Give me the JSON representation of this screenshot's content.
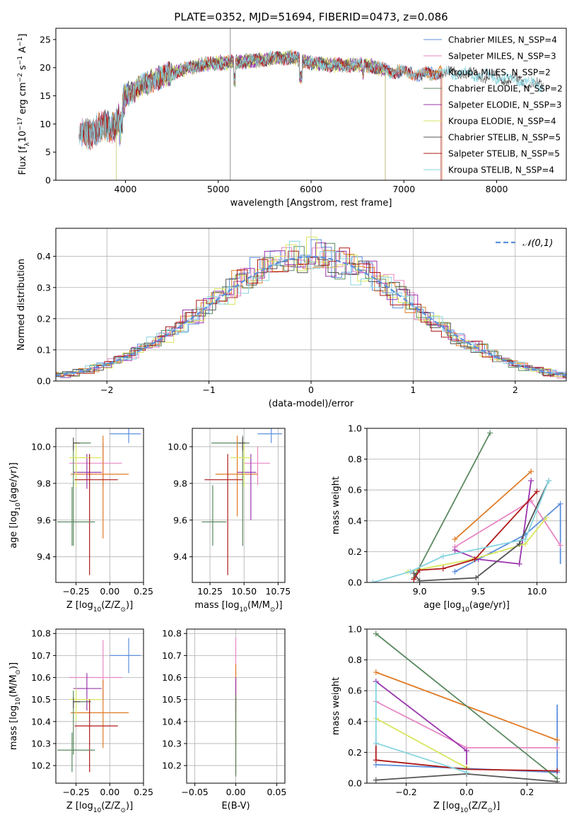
{
  "figure_title": "PLATE=0352, MJD=51694, FIBERID=0473, z=0.086",
  "colors": {
    "Chabrier MILES": "#5b8fde",
    "Salpeter MILES": "#e887c4",
    "Kroupa MILES": "#e07b25",
    "Chabrier ELODIE": "#5a8a60",
    "Salpeter ELODIE": "#9a36ad",
    "Kroupa ELODIE": "#d8e65c",
    "Chabrier STELIB": "#555555",
    "Salpeter STELIB": "#b01818",
    "Kroupa STELIB": "#86d4e0",
    "normal_curve": "#5b8fde",
    "grid": "#b0b0b0"
  },
  "chart_data": [
    {
      "id": "spectrum",
      "type": "line",
      "title": "PLATE=0352, MJD=51694, FIBERID=0473, z=0.086",
      "xlabel": "wavelength [Angstrom, rest frame]",
      "ylabel": "Flux [f_λ10^-17 erg cm^-2 s^-1 A^-1]",
      "xlim": [
        3250,
        8750
      ],
      "ylim": [
        0,
        27
      ],
      "xticks": [
        4000,
        5000,
        6000,
        7000,
        8000
      ],
      "yticks": [
        0,
        5,
        10,
        15,
        20,
        25
      ],
      "grid": false,
      "legend_position": "top-right",
      "legend": [
        "Chabrier MILES, N_SSP=4",
        "Salpeter MILES, N_SSP=3",
        "Kroupa MILES, N_SSP=2",
        "Chabrier ELODIE, N_SSP=2",
        "Salpeter ELODIE, N_SSP=3",
        "Kroupa ELODIE, N_SSP=4",
        "Chabrier STELIB, N_SSP=5",
        "Salpeter STELIB, N_SSP=5",
        "Kroupa STELIB, N_SSP=4"
      ],
      "continuum": {
        "x": [
          3500,
          3700,
          3900,
          4000,
          4200,
          4400,
          4600,
          4800,
          5000,
          5200,
          5400,
          5600,
          5800,
          6000,
          6200,
          6400,
          6600,
          6800,
          7000,
          7200,
          7400,
          7600,
          7800,
          8000,
          8200,
          8400,
          8500
        ],
        "y": [
          8,
          9,
          10,
          15,
          17,
          18.5,
          19.5,
          20.5,
          20.8,
          21,
          21.3,
          21.7,
          21.8,
          20.8,
          20.5,
          20.5,
          20.5,
          19.5,
          19.2,
          18.8,
          19.2,
          19,
          18.7,
          18.3,
          17.8,
          17,
          17
        ]
      },
      "series_coverage": [
        {
          "name": "Chabrier MILES",
          "x_range": [
            3530,
            7410
          ]
        },
        {
          "name": "Salpeter MILES",
          "x_range": [
            3530,
            7410
          ]
        },
        {
          "name": "Kroupa MILES",
          "x_range": [
            3530,
            7410
          ]
        },
        {
          "name": "Chabrier ELODIE",
          "x_range": [
            3900,
            6800
          ]
        },
        {
          "name": "Salpeter ELODIE",
          "x_range": [
            3900,
            6800
          ]
        },
        {
          "name": "Kroupa ELODIE",
          "x_range": [
            3900,
            6800
          ]
        },
        {
          "name": "Chabrier STELIB",
          "x_range": [
            3500,
            8500
          ]
        },
        {
          "name": "Salpeter STELIB",
          "x_range": [
            3500,
            7400
          ]
        },
        {
          "name": "Kroupa STELIB",
          "x_range": [
            3500,
            8500
          ]
        }
      ]
    },
    {
      "id": "residuals",
      "type": "line",
      "xlabel": "(data-model)/error",
      "ylabel": "Normed distribution",
      "xlim": [
        -2.5,
        2.5
      ],
      "ylim": [
        0,
        0.49
      ],
      "xticks": [
        -2,
        -1,
        0,
        1,
        2
      ],
      "yticks": [
        0.0,
        0.1,
        0.2,
        0.3,
        0.4
      ],
      "grid": true,
      "legend_position": "top-right",
      "legend": [
        "𝒩(0,1)"
      ],
      "bin_width": 0.1
    },
    {
      "id": "age_vs_Z",
      "type": "scatter",
      "xlabel": "Z [log10(Z/Z⊙)]",
      "ylabel": "age  [log10(age/yr)]",
      "xlim": [
        -0.4,
        0.25
      ],
      "ylim": [
        9.26,
        10.1
      ],
      "xticks": [
        -0.25,
        0.0,
        0.25
      ],
      "yticks": [
        9.4,
        9.6,
        9.8,
        10.0
      ],
      "grid": true,
      "points": [
        {
          "name": "Chabrier MILES",
          "x": 0.14,
          "y": 10.07,
          "xerr": [
            0.14,
            0.09
          ],
          "yerr": [
            0.05,
            0.05
          ]
        },
        {
          "name": "Salpeter MILES",
          "x": -0.05,
          "y": 9.91,
          "xerr": [
            0.25,
            0.14
          ],
          "yerr": [
            0.13,
            0.11
          ]
        },
        {
          "name": "Kroupa MILES",
          "x": -0.05,
          "y": 9.85,
          "xerr": [
            0.24,
            0.19
          ],
          "yerr": [
            0.35,
            0.21
          ]
        },
        {
          "name": "Chabrier ELODIE",
          "x": -0.27,
          "y": 10.02,
          "xerr": [
            0.0,
            0.13
          ],
          "yerr": [
            0.56,
            0.0
          ]
        },
        {
          "name": "Salpeter ELODIE",
          "x": -0.17,
          "y": 9.86,
          "xerr": [
            0.1,
            0.11
          ],
          "yerr": [
            0.09,
            0.1
          ]
        },
        {
          "name": "Kroupa ELODIE",
          "x": -0.25,
          "y": 9.94,
          "xerr": [
            0.05,
            0.19
          ],
          "yerr": [
            0.16,
            0.08
          ]
        },
        {
          "name": "Chabrier STELIB",
          "x": -0.27,
          "y": 10.02,
          "xerr": [
            0.0,
            0.05
          ],
          "yerr": [
            0.04,
            0.03
          ]
        },
        {
          "name": "Salpeter STELIB",
          "x": -0.15,
          "y": 9.82,
          "xerr": [
            0.11,
            0.21
          ],
          "yerr": [
            0.52,
            0.14
          ]
        },
        {
          "name": "Chabrier ELODIE b",
          "x": -0.28,
          "y": 9.59,
          "xerr": [
            0.11,
            0.17
          ],
          "yerr": [
            0.13,
            0.19
          ]
        }
      ]
    },
    {
      "id": "age_vs_mass",
      "type": "scatter",
      "xlabel": "mass [log10(M/M⊙)]",
      "ylabel": "",
      "xlim": [
        10.12,
        10.8
      ],
      "ylim": [
        9.26,
        10.1
      ],
      "xticks": [
        10.25,
        10.5,
        10.75
      ],
      "yticks": [
        9.4,
        9.6,
        9.8,
        10.0
      ],
      "grid": true,
      "points": [
        {
          "name": "Chabrier MILES",
          "x": 10.7,
          "y": 10.07,
          "xerr": [
            0.1,
            0.08
          ],
          "yerr": [
            0.05,
            0.05
          ]
        },
        {
          "name": "Salpeter MILES",
          "x": 10.6,
          "y": 9.91,
          "xerr": [
            0.1,
            0.09
          ],
          "yerr": [
            0.12,
            0.09
          ]
        },
        {
          "name": "Kroupa MILES",
          "x": 10.45,
          "y": 9.85,
          "xerr": [
            0.16,
            0.15
          ],
          "yerr": [
            0.23,
            0.21
          ]
        },
        {
          "name": "Chabrier ELODIE",
          "x": 10.49,
          "y": 10.02,
          "xerr": [
            0.23,
            0.05
          ],
          "yerr": [
            0.56,
            0.04
          ]
        },
        {
          "name": "Salpeter ELODIE",
          "x": 10.55,
          "y": 9.86,
          "xerr": [
            0.1,
            0.04
          ],
          "yerr": [
            0.26,
            0.1
          ]
        },
        {
          "name": "Kroupa ELODIE",
          "x": 10.5,
          "y": 9.94,
          "xerr": [
            0.1,
            0.05
          ],
          "yerr": [
            0.16,
            0.08
          ]
        },
        {
          "name": "Chabrier STELIB",
          "x": 10.49,
          "y": 10.02,
          "xerr": [
            0.03,
            0.02
          ],
          "yerr": [
            0.04,
            0.03
          ]
        },
        {
          "name": "Salpeter STELIB",
          "x": 10.38,
          "y": 9.82,
          "xerr": [
            0.17,
            0.11
          ],
          "yerr": [
            0.52,
            0.14
          ]
        },
        {
          "name": "Chabrier ELODIE b",
          "x": 10.27,
          "y": 9.59,
          "xerr": [
            0.08,
            0.1
          ],
          "yerr": [
            0.13,
            0.2
          ]
        }
      ]
    },
    {
      "id": "weight_vs_age",
      "type": "line",
      "xlabel": "age  [log10(age/yr)]",
      "ylabel": "mass weight",
      "xlim": [
        8.55,
        10.25
      ],
      "ylim": [
        0,
        1.0
      ],
      "xticks": [
        9.0,
        9.5,
        10.0
      ],
      "yticks": [
        0.0,
        0.2,
        0.4,
        0.6,
        0.8,
        1.0
      ],
      "grid": true,
      "series": [
        {
          "name": "Chabrier MILES",
          "x": [
            9.3,
            9.9,
            10.2
          ],
          "y": [
            0.07,
            0.31,
            0.51
          ],
          "vlines": [
            {
              "x": 10.2,
              "y": [
                0.12,
                0.51
              ]
            }
          ]
        },
        {
          "name": "Salpeter MILES",
          "x": [
            9.3,
            9.95,
            10.2
          ],
          "y": [
            0.23,
            0.53,
            0.24
          ]
        },
        {
          "name": "Kroupa MILES",
          "x": [
            9.3,
            9.95
          ],
          "y": [
            0.28,
            0.72
          ]
        },
        {
          "name": "Chabrier ELODIE",
          "x": [
            8.95,
            9.6
          ],
          "y": [
            0.03,
            0.97
          ]
        },
        {
          "name": "Salpeter ELODIE",
          "x": [
            9.3,
            9.5,
            9.85,
            9.95
          ],
          "y": [
            0.21,
            0.15,
            0.12,
            0.66
          ]
        },
        {
          "name": "Kroupa ELODIE",
          "x": [
            8.9,
            9.45,
            9.9,
            10.08
          ],
          "y": [
            0.07,
            0.15,
            0.25,
            0.42
          ]
        },
        {
          "name": "Chabrier STELIB",
          "x": [
            8.95,
            9.0,
            9.48,
            9.85,
            10.1
          ],
          "y": [
            0.06,
            0.01,
            0.03,
            0.25,
            0.66
          ]
        },
        {
          "name": "Salpeter STELIB",
          "x": [
            8.95,
            9.0,
            9.2,
            9.47,
            10.0
          ],
          "y": [
            0.02,
            0.08,
            0.09,
            0.15,
            0.59
          ]
        },
        {
          "name": "Kroupa STELIB",
          "x": [
            8.6,
            8.92,
            9.2,
            9.9,
            10.1
          ],
          "y": [
            0.0,
            0.07,
            0.17,
            0.28,
            0.66
          ]
        }
      ]
    },
    {
      "id": "mass_vs_Z",
      "type": "scatter",
      "xlabel": "Z [log10(Z/Z⊙)]",
      "ylabel": "mass [log10(M/M⊙)]",
      "xlim": [
        -0.4,
        0.25
      ],
      "ylim": [
        10.12,
        10.82
      ],
      "xticks": [
        -0.25,
        0.0,
        0.25
      ],
      "yticks": [
        10.2,
        10.3,
        10.4,
        10.5,
        10.6,
        10.7,
        10.8
      ],
      "grid": true,
      "points": [
        {
          "name": "Chabrier MILES",
          "x": 0.14,
          "y": 10.7,
          "xerr": [
            0.14,
            0.09
          ],
          "yerr": [
            0.08,
            0.08
          ]
        },
        {
          "name": "Salpeter MILES",
          "x": -0.05,
          "y": 10.6,
          "xerr": [
            0.25,
            0.14
          ],
          "yerr": [
            0.1,
            0.17
          ]
        },
        {
          "name": "Kroupa MILES",
          "x": -0.05,
          "y": 10.44,
          "xerr": [
            0.24,
            0.19
          ],
          "yerr": [
            0.16,
            0.15
          ]
        },
        {
          "name": "Chabrier ELODIE",
          "x": -0.27,
          "y": 10.49,
          "xerr": [
            0.0,
            0.13
          ],
          "yerr": [
            0.24,
            0.05
          ]
        },
        {
          "name": "Salpeter ELODIE",
          "x": -0.17,
          "y": 10.55,
          "xerr": [
            0.1,
            0.11
          ],
          "yerr": [
            0.1,
            0.07
          ]
        },
        {
          "name": "Kroupa ELODIE",
          "x": -0.25,
          "y": 10.5,
          "xerr": [
            0.05,
            0.19
          ],
          "yerr": [
            0.1,
            0.05
          ]
        },
        {
          "name": "Chabrier STELIB",
          "x": -0.27,
          "y": 10.49,
          "xerr": [
            0.0,
            0.05
          ],
          "yerr": [
            0.03,
            0.02
          ]
        },
        {
          "name": "Salpeter STELIB",
          "x": -0.15,
          "y": 10.38,
          "xerr": [
            0.11,
            0.21
          ],
          "yerr": [
            0.21,
            0.12
          ]
        },
        {
          "name": "Chabrier ELODIE b",
          "x": -0.28,
          "y": 10.27,
          "xerr": [
            0.11,
            0.17
          ],
          "yerr": [
            0.1,
            0.08
          ]
        }
      ]
    },
    {
      "id": "mass_vs_EBV",
      "type": "scatter",
      "xlabel": "E(B-V)",
      "ylabel": "",
      "xlim": [
        -0.06,
        0.06
      ],
      "ylim": [
        10.12,
        10.82
      ],
      "xticks": [
        -0.05,
        0.0,
        0.05
      ],
      "yticks": [
        10.2,
        10.3,
        10.4,
        10.5,
        10.6,
        10.7,
        10.8
      ],
      "grid": true,
      "points": [
        {
          "name": "Salpeter MILES",
          "x": 0.0,
          "y": 10.6,
          "yerr": [
            0.1,
            0.18
          ]
        },
        {
          "name": "Kroupa MILES",
          "x": 0.0,
          "y": 10.44,
          "yerr": [
            0.15,
            0.22
          ]
        },
        {
          "name": "Salpeter ELODIE",
          "x": 0.0,
          "y": 10.52,
          "yerr": [
            0.08,
            0.08
          ]
        },
        {
          "name": "Salpeter STELIB",
          "x": 0.0,
          "y": 10.38,
          "yerr": [
            0.22,
            0.13
          ]
        },
        {
          "name": "Chabrier ELODIE",
          "x": 0.0,
          "y": 10.3,
          "yerr": [
            0.15,
            0.22
          ]
        }
      ]
    },
    {
      "id": "weight_vs_Z",
      "type": "line",
      "xlabel": "Z [log10(Z/Z⊙)]",
      "ylabel": "mass weight",
      "xlim": [
        -0.33,
        0.33
      ],
      "ylim": [
        0,
        1.0
      ],
      "xticks": [
        -0.2,
        0.0,
        0.2
      ],
      "yticks": [
        0.0,
        0.2,
        0.4,
        0.6,
        0.8,
        1.0
      ],
      "grid": true,
      "series": [
        {
          "name": "Chabrier MILES",
          "x": [
            -0.3,
            0.3
          ],
          "y": [
            0.12,
            0.07
          ],
          "vlines": [
            {
              "x": 0.3,
              "y": [
                0.07,
                0.51
              ]
            }
          ]
        },
        {
          "name": "Salpeter MILES",
          "x": [
            -0.3,
            0.0,
            0.3
          ],
          "y": [
            0.53,
            0.23,
            0.23
          ]
        },
        {
          "name": "Kroupa MILES",
          "x": [
            -0.3,
            0.3
          ],
          "y": [
            0.72,
            0.28
          ]
        },
        {
          "name": "Chabrier ELODIE",
          "x": [
            -0.3,
            0.3
          ],
          "y": [
            0.97,
            0.03
          ]
        },
        {
          "name": "Salpeter ELODIE",
          "x": [
            -0.3,
            0.0
          ],
          "y": [
            0.66,
            0.21
          ],
          "vlines": [
            {
              "x": 0.0,
              "y": [
                0.12,
                0.21
              ]
            }
          ]
        },
        {
          "name": "Kroupa ELODIE",
          "x": [
            -0.3,
            0.0
          ],
          "y": [
            0.42,
            0.1
          ]
        },
        {
          "name": "Chabrier STELIB",
          "x": [
            -0.3,
            0.0,
            0.3
          ],
          "y": [
            0.02,
            0.06,
            0.01
          ]
        },
        {
          "name": "Salpeter STELIB",
          "x": [
            -0.3,
            0.0,
            0.3
          ],
          "y": [
            0.15,
            0.09,
            0.08
          ],
          "vlines": [
            {
              "x": -0.3,
              "y": [
                0.15,
                0.26
              ]
            }
          ]
        },
        {
          "name": "Kroupa STELIB",
          "x": [
            -0.3,
            0.0
          ],
          "y": [
            0.26,
            0.07
          ],
          "vlines": [
            {
              "x": -0.3,
              "y": [
                0.26,
                0.66
              ]
            }
          ]
        }
      ]
    }
  ]
}
